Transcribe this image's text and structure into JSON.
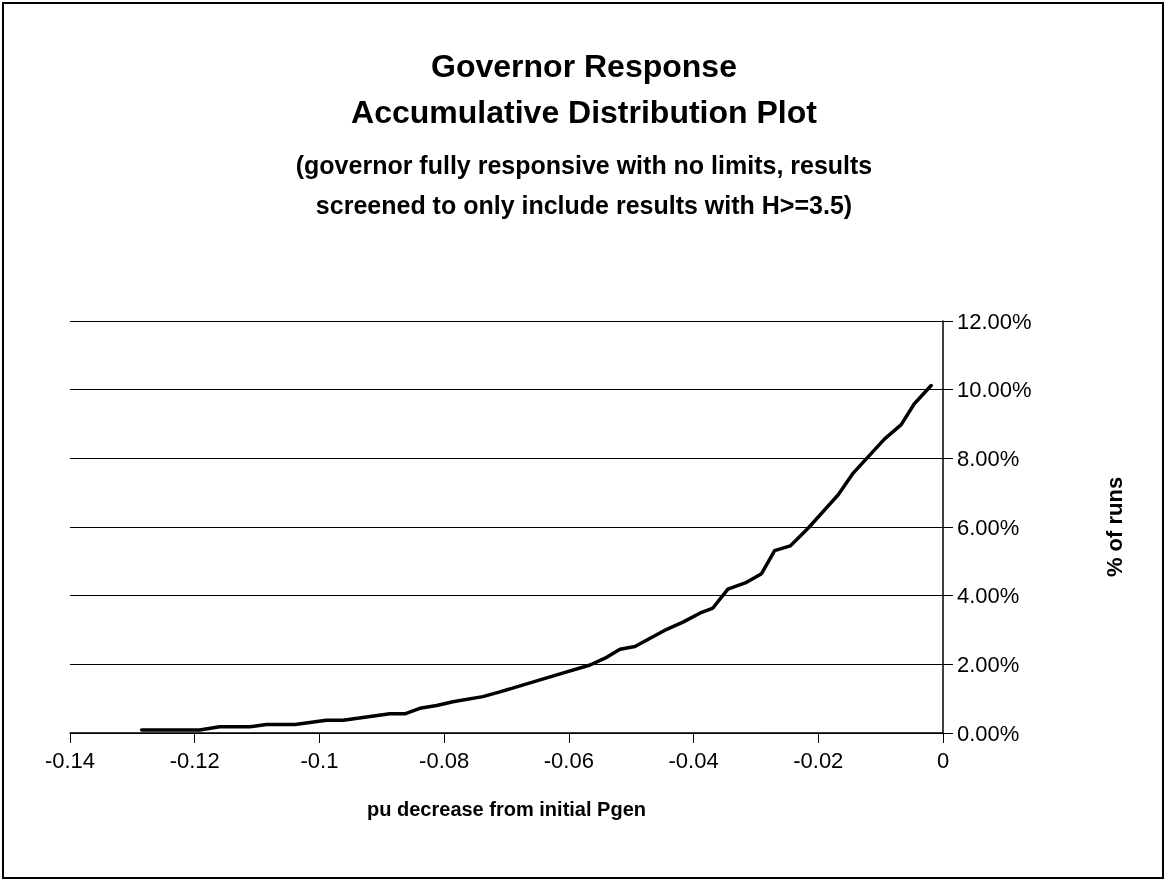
{
  "chart_data": {
    "type": "line",
    "title": "Governor Response\nAccumulative Distribution Plot",
    "subtitle": "(governor fully responsive with no limits, results\nscreened to only include results with H>=3.5)",
    "xlabel": "pu decrease from initial Pgen",
    "ylabel": "% of runs",
    "series": [
      {
        "color": "#000000",
        "x": [
          -0.1285,
          -0.1192,
          -0.116,
          -0.1112,
          -0.1085,
          -0.1039,
          -0.0989,
          -0.0962,
          -0.0887,
          -0.0863,
          -0.0839,
          -0.0812,
          -0.0786,
          -0.0738,
          -0.0712,
          -0.0614,
          -0.0566,
          -0.0542,
          -0.0518,
          -0.0494,
          -0.0443,
          -0.0417,
          -0.039,
          -0.0369,
          -0.0345,
          -0.0315,
          -0.0291,
          -0.027,
          -0.0245,
          -0.0216,
          -0.0168,
          -0.0144,
          -0.0094,
          -0.0067,
          -0.0046,
          -0.0019
        ],
        "values": [
          0.09,
          0.09,
          0.18,
          0.18,
          0.25,
          0.25,
          0.37,
          0.37,
          0.56,
          0.56,
          0.72,
          0.8,
          0.91,
          1.06,
          1.19,
          1.72,
          1.98,
          2.18,
          2.44,
          2.52,
          3.02,
          3.23,
          3.49,
          3.64,
          4.19,
          4.39,
          4.64,
          5.31,
          5.45,
          5.97,
          6.94,
          7.57,
          8.56,
          8.98,
          9.59,
          10.12
        ]
      }
    ],
    "xlim": [
      -0.14,
      0
    ],
    "xticks": [
      -0.14,
      -0.12,
      -0.1,
      -0.08,
      -0.06,
      -0.04,
      -0.02,
      0
    ],
    "ylim": [
      0,
      12
    ],
    "yticks": [
      {
        "value": 0,
        "label": "0.00%"
      },
      {
        "value": 2,
        "label": "2.00%"
      },
      {
        "value": 4,
        "label": "4.00%"
      },
      {
        "value": 6,
        "label": "6.00%"
      },
      {
        "value": 8,
        "label": "8.00%"
      },
      {
        "value": 10,
        "label": "10.00%"
      },
      {
        "value": 12,
        "label": "12.00%"
      }
    ],
    "grid": "y",
    "marker": "none",
    "line_style": "solid"
  }
}
